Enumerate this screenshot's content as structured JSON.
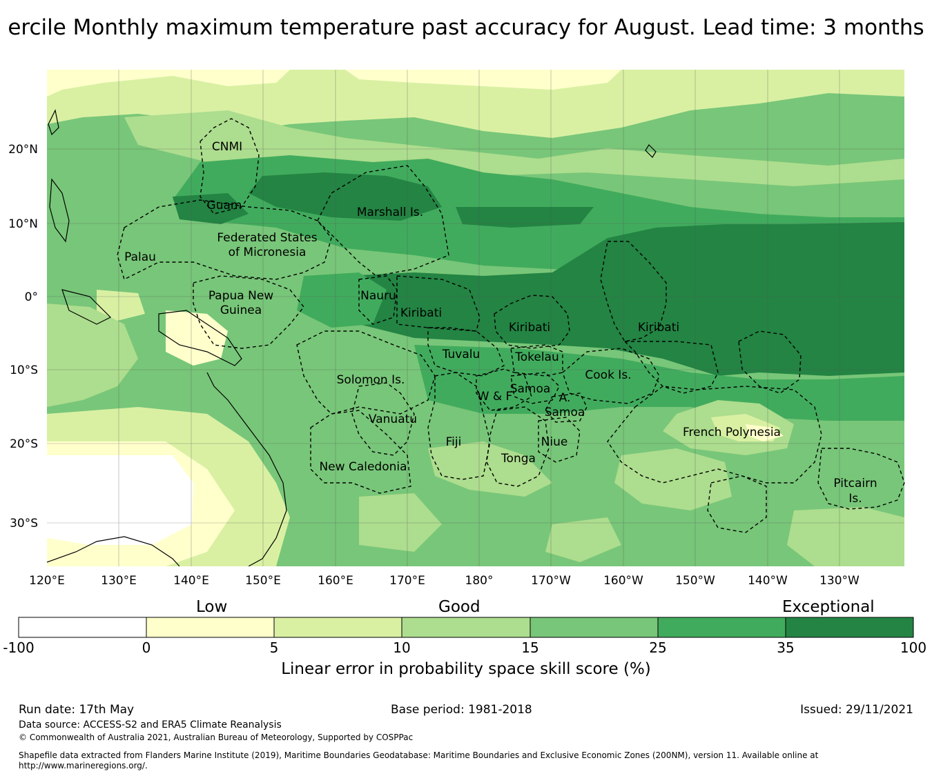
{
  "title": "ercile Monthly maximum temperature past accuracy for August. Lead time: 3 months",
  "map": {
    "lat_labels": [
      "20°N",
      "10°N",
      "0°",
      "10°S",
      "20°S",
      "30°S"
    ],
    "lon_labels": [
      "120°E",
      "130°E",
      "140°E",
      "150°E",
      "160°E",
      "170°E",
      "180°",
      "170°W",
      "160°W",
      "150°W",
      "140°W",
      "130°W"
    ],
    "region_labels": [
      "CNMI",
      "Guam",
      "Marshall Is.",
      "Palau",
      "Federated States",
      "of Micronesia",
      "Papua New",
      "Guinea",
      "Nauru",
      "Kiribati",
      "Kiribati",
      "Kiribati",
      "Tuvalu",
      "Tokelau",
      "Solomon Is.",
      "Samoa",
      "W & F",
      "A.",
      "Samoa",
      "Cook Is.",
      "French Polynesia",
      "Vanuatu",
      "Fiji",
      "Niue",
      "Tonga",
      "New Caledonia",
      "Pitcairn",
      "Is."
    ]
  },
  "colorbar": {
    "categories": [
      "Low",
      "Good",
      "Exceptional"
    ],
    "ticks": [
      "-100",
      "0",
      "5",
      "10",
      "15",
      "25",
      "35",
      "100"
    ],
    "colors": [
      "#ffffff",
      "#ffffcc",
      "#d9f0a3",
      "#addd8e",
      "#78c679",
      "#41ab5d",
      "#238443"
    ],
    "label": "Linear error in probability space skill score (%)"
  },
  "footer": {
    "run_date": "Run date: 17th May",
    "base_period": "Base period: 1981-2018",
    "issued": "Issued: 29/11/2021",
    "data_source": "Data source: ACCESS-S2 and ERA5 Climate Reanalysis",
    "copyright": "© Commonwealth of Australia 2021, Australian Bureau of Meteorology, Supported by COSPPac",
    "shapefile": "Shapefile data extracted from Flanders Marine Institute (2019), Maritime Boundaries Geodatabase: Maritime Boundaries and Exclusive Economic Zones (200NM), version 11. Available online at http://www.marineregions.org/."
  }
}
